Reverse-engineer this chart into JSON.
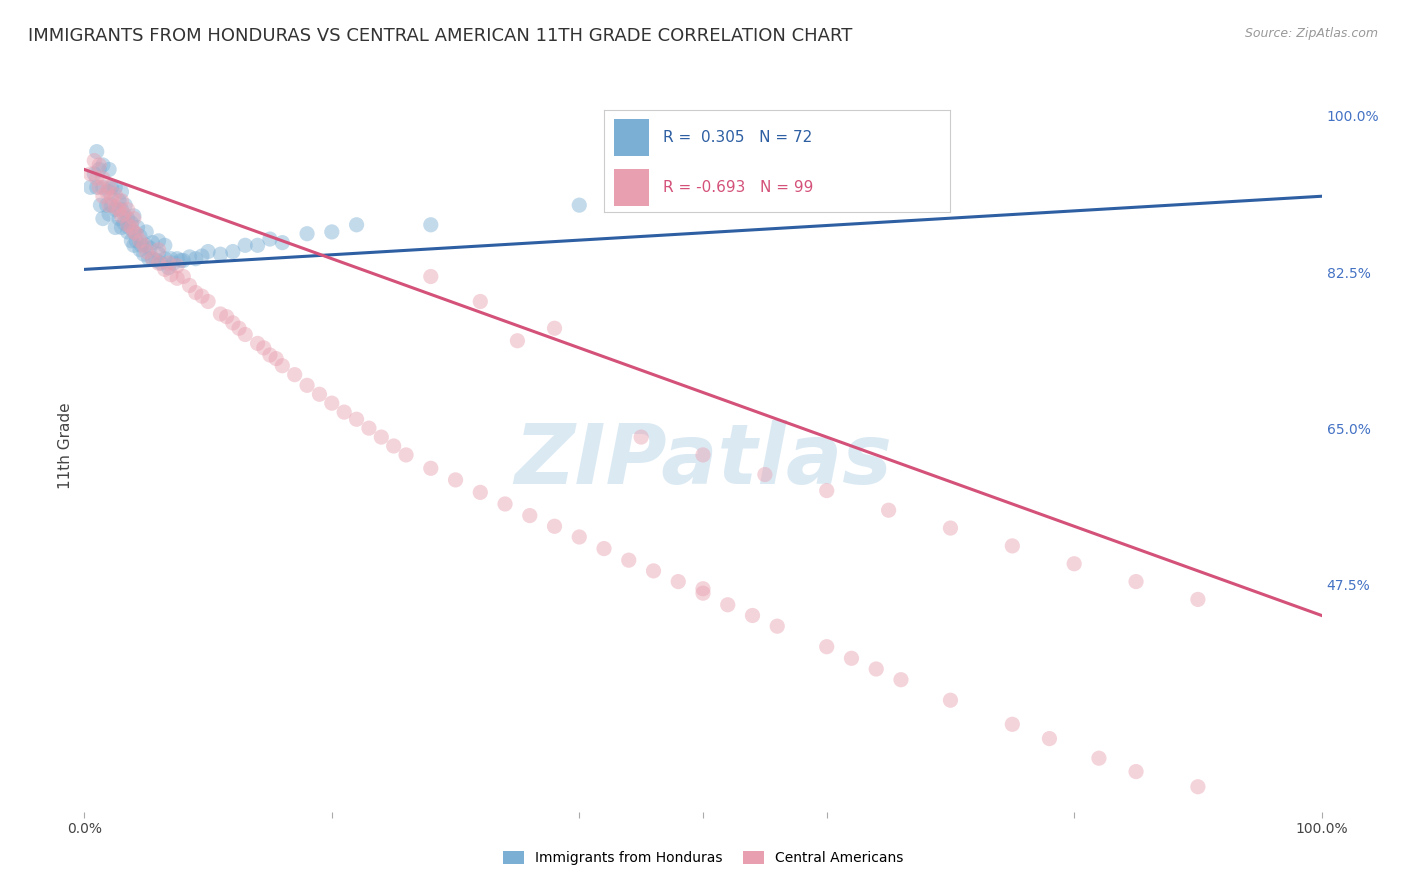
{
  "title": "IMMIGRANTS FROM HONDURAS VS CENTRAL AMERICAN 11TH GRADE CORRELATION CHART",
  "source": "Source: ZipAtlas.com",
  "ylabel": "11th Grade",
  "ytick_labels": [
    "100.0%",
    "82.5%",
    "65.0%",
    "47.5%"
  ],
  "ytick_values": [
    1.0,
    0.825,
    0.65,
    0.475
  ],
  "legend_label1": "Immigrants from Honduras",
  "legend_label2": "Central Americans",
  "R1": 0.305,
  "N1": 72,
  "R2": -0.693,
  "N2": 99,
  "blue_color": "#7bafd4",
  "pink_color": "#e8a0b0",
  "blue_line_color": "#2e5fa3",
  "pink_line_color": "#d4527a",
  "watermark": "ZIPatlas",
  "background_color": "#ffffff",
  "blue_scatter_x": [
    0.005,
    0.008,
    0.01,
    0.01,
    0.012,
    0.013,
    0.015,
    0.015,
    0.015,
    0.018,
    0.02,
    0.02,
    0.02,
    0.022,
    0.022,
    0.025,
    0.025,
    0.025,
    0.028,
    0.028,
    0.03,
    0.03,
    0.03,
    0.032,
    0.033,
    0.035,
    0.035,
    0.036,
    0.038,
    0.038,
    0.04,
    0.04,
    0.04,
    0.042,
    0.043,
    0.045,
    0.045,
    0.046,
    0.048,
    0.05,
    0.05,
    0.052,
    0.053,
    0.055,
    0.055,
    0.058,
    0.06,
    0.06,
    0.062,
    0.065,
    0.065,
    0.068,
    0.07,
    0.072,
    0.075,
    0.078,
    0.08,
    0.085,
    0.09,
    0.095,
    0.1,
    0.11,
    0.12,
    0.13,
    0.14,
    0.15,
    0.16,
    0.18,
    0.2,
    0.22,
    0.28,
    0.4
  ],
  "blue_scatter_y": [
    0.92,
    0.935,
    0.92,
    0.96,
    0.94,
    0.9,
    0.885,
    0.92,
    0.945,
    0.9,
    0.89,
    0.915,
    0.94,
    0.9,
    0.92,
    0.875,
    0.895,
    0.92,
    0.885,
    0.905,
    0.875,
    0.895,
    0.915,
    0.88,
    0.9,
    0.87,
    0.885,
    0.875,
    0.86,
    0.88,
    0.855,
    0.87,
    0.888,
    0.86,
    0.875,
    0.85,
    0.865,
    0.855,
    0.845,
    0.855,
    0.87,
    0.84,
    0.852,
    0.84,
    0.858,
    0.838,
    0.845,
    0.86,
    0.835,
    0.84,
    0.855,
    0.83,
    0.84,
    0.835,
    0.84,
    0.838,
    0.838,
    0.842,
    0.84,
    0.843,
    0.848,
    0.845,
    0.848,
    0.855,
    0.855,
    0.862,
    0.858,
    0.868,
    0.87,
    0.878,
    0.878,
    0.9
  ],
  "pink_scatter_x": [
    0.005,
    0.008,
    0.01,
    0.012,
    0.012,
    0.015,
    0.015,
    0.018,
    0.02,
    0.02,
    0.022,
    0.025,
    0.025,
    0.028,
    0.03,
    0.03,
    0.032,
    0.035,
    0.035,
    0.038,
    0.04,
    0.04,
    0.042,
    0.045,
    0.048,
    0.05,
    0.055,
    0.06,
    0.06,
    0.065,
    0.068,
    0.07,
    0.075,
    0.075,
    0.08,
    0.085,
    0.09,
    0.095,
    0.1,
    0.11,
    0.115,
    0.12,
    0.125,
    0.13,
    0.14,
    0.145,
    0.15,
    0.155,
    0.16,
    0.17,
    0.18,
    0.19,
    0.2,
    0.21,
    0.22,
    0.23,
    0.24,
    0.25,
    0.26,
    0.28,
    0.3,
    0.32,
    0.34,
    0.36,
    0.38,
    0.4,
    0.42,
    0.44,
    0.46,
    0.48,
    0.5,
    0.52,
    0.54,
    0.56,
    0.6,
    0.62,
    0.64,
    0.66,
    0.7,
    0.75,
    0.78,
    0.82,
    0.85,
    0.9,
    0.45,
    0.5,
    0.55,
    0.6,
    0.65,
    0.7,
    0.75,
    0.8,
    0.85,
    0.9,
    0.5,
    0.35,
    0.28,
    0.32,
    0.38
  ],
  "pink_scatter_y": [
    0.935,
    0.95,
    0.93,
    0.92,
    0.945,
    0.91,
    0.93,
    0.915,
    0.9,
    0.92,
    0.908,
    0.898,
    0.912,
    0.895,
    0.888,
    0.905,
    0.89,
    0.878,
    0.895,
    0.875,
    0.87,
    0.885,
    0.868,
    0.86,
    0.855,
    0.848,
    0.84,
    0.835,
    0.85,
    0.828,
    0.835,
    0.822,
    0.818,
    0.832,
    0.82,
    0.81,
    0.802,
    0.798,
    0.792,
    0.778,
    0.775,
    0.768,
    0.762,
    0.755,
    0.745,
    0.74,
    0.732,
    0.728,
    0.72,
    0.71,
    0.698,
    0.688,
    0.678,
    0.668,
    0.66,
    0.65,
    0.64,
    0.63,
    0.62,
    0.605,
    0.592,
    0.578,
    0.565,
    0.552,
    0.54,
    0.528,
    0.515,
    0.502,
    0.49,
    0.478,
    0.465,
    0.452,
    0.44,
    0.428,
    0.405,
    0.392,
    0.38,
    0.368,
    0.345,
    0.318,
    0.302,
    0.28,
    0.265,
    0.248,
    0.64,
    0.62,
    0.598,
    0.58,
    0.558,
    0.538,
    0.518,
    0.498,
    0.478,
    0.458,
    0.47,
    0.748,
    0.82,
    0.792,
    0.762
  ],
  "blue_line_x": [
    0.0,
    1.0
  ],
  "blue_line_y": [
    0.828,
    0.91
  ],
  "pink_line_x": [
    0.0,
    1.0
  ],
  "pink_line_y": [
    0.94,
    0.44
  ],
  "xlim": [
    0.0,
    1.0
  ],
  "ylim": [
    0.22,
    1.04
  ],
  "grid_color": "#cccccc",
  "title_fontsize": 13,
  "axis_label_fontsize": 11,
  "tick_fontsize": 10,
  "scatter_size": 120,
  "scatter_alpha": 0.45,
  "line_width": 2.2
}
